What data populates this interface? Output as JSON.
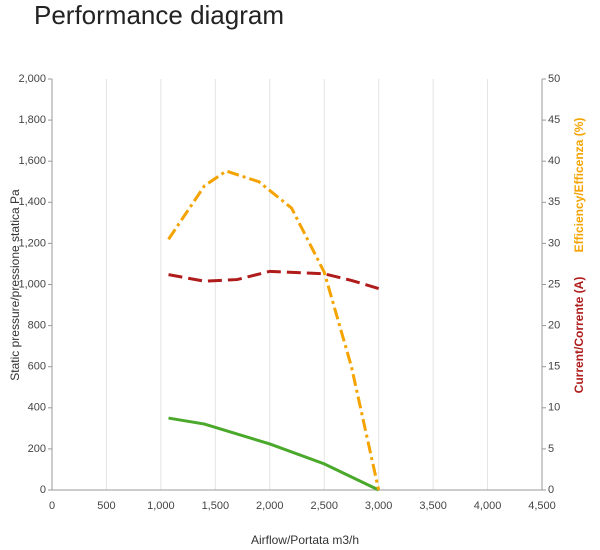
{
  "chart_data": {
    "type": "line",
    "title": "Performance diagram",
    "xlabel": "Airflow/Portata m3/h",
    "ylabel": "Static pressure/pressione statica Pa",
    "y2labels": [
      {
        "text": "Efficiency/Efficenza (%)",
        "color": "#f5a300"
      },
      {
        "text": "Current/Corrente (A)",
        "color": "#b01c1c"
      }
    ],
    "xlim": [
      0,
      4500
    ],
    "xticks": [
      0,
      500,
      {
        "value": 1000,
        "label": "1,000"
      },
      {
        "value": 1500,
        "label": "1,500"
      },
      {
        "value": 2000,
        "label": "2,000"
      },
      {
        "value": 2500,
        "label": "2,500"
      },
      {
        "value": 3000,
        "label": "3,000"
      },
      {
        "value": 3500,
        "label": "3,500"
      },
      {
        "value": 4000,
        "label": "4,000"
      },
      {
        "value": 4500,
        "label": "4,500"
      }
    ],
    "ylim": [
      0,
      2000
    ],
    "yticks": [
      0,
      200,
      400,
      600,
      800,
      {
        "value": 1000,
        "label": "1,000"
      },
      {
        "value": 1200,
        "label": "1,200"
      },
      {
        "value": 1400,
        "label": "1,400"
      },
      {
        "value": 1600,
        "label": "1,600"
      },
      {
        "value": 1800,
        "label": "1,800"
      },
      {
        "value": 2000,
        "label": "2,000"
      }
    ],
    "y2lim": [
      0,
      50
    ],
    "y2ticks": [
      0,
      5,
      10,
      15,
      20,
      25,
      30,
      35,
      40,
      45,
      50
    ],
    "grid": "x",
    "series": [
      {
        "color": "#4aa82a",
        "dash": "solid",
        "x": [
          1070,
          1400,
          2000,
          2500,
          3000
        ],
        "values": [
          350,
          321,
          224,
          127,
          0
        ]
      },
      {
        "color": "#f5a300",
        "dash": "dashdot",
        "axis": "y2",
        "x": [
          1070,
          1400,
          1600,
          1900,
          2200,
          2500,
          2750,
          3000
        ],
        "values": [
          30.5,
          37,
          38.8,
          37.5,
          34.3,
          26.5,
          15,
          0
        ]
      },
      {
        "color": "#b01c1c",
        "dash": "dashed",
        "axis": "y2",
        "x": [
          1070,
          1400,
          1700,
          2000,
          2500,
          2750,
          3000
        ],
        "values": [
          26.2,
          25.4,
          25.6,
          26.6,
          26.3,
          25.5,
          24.5
        ]
      }
    ]
  }
}
